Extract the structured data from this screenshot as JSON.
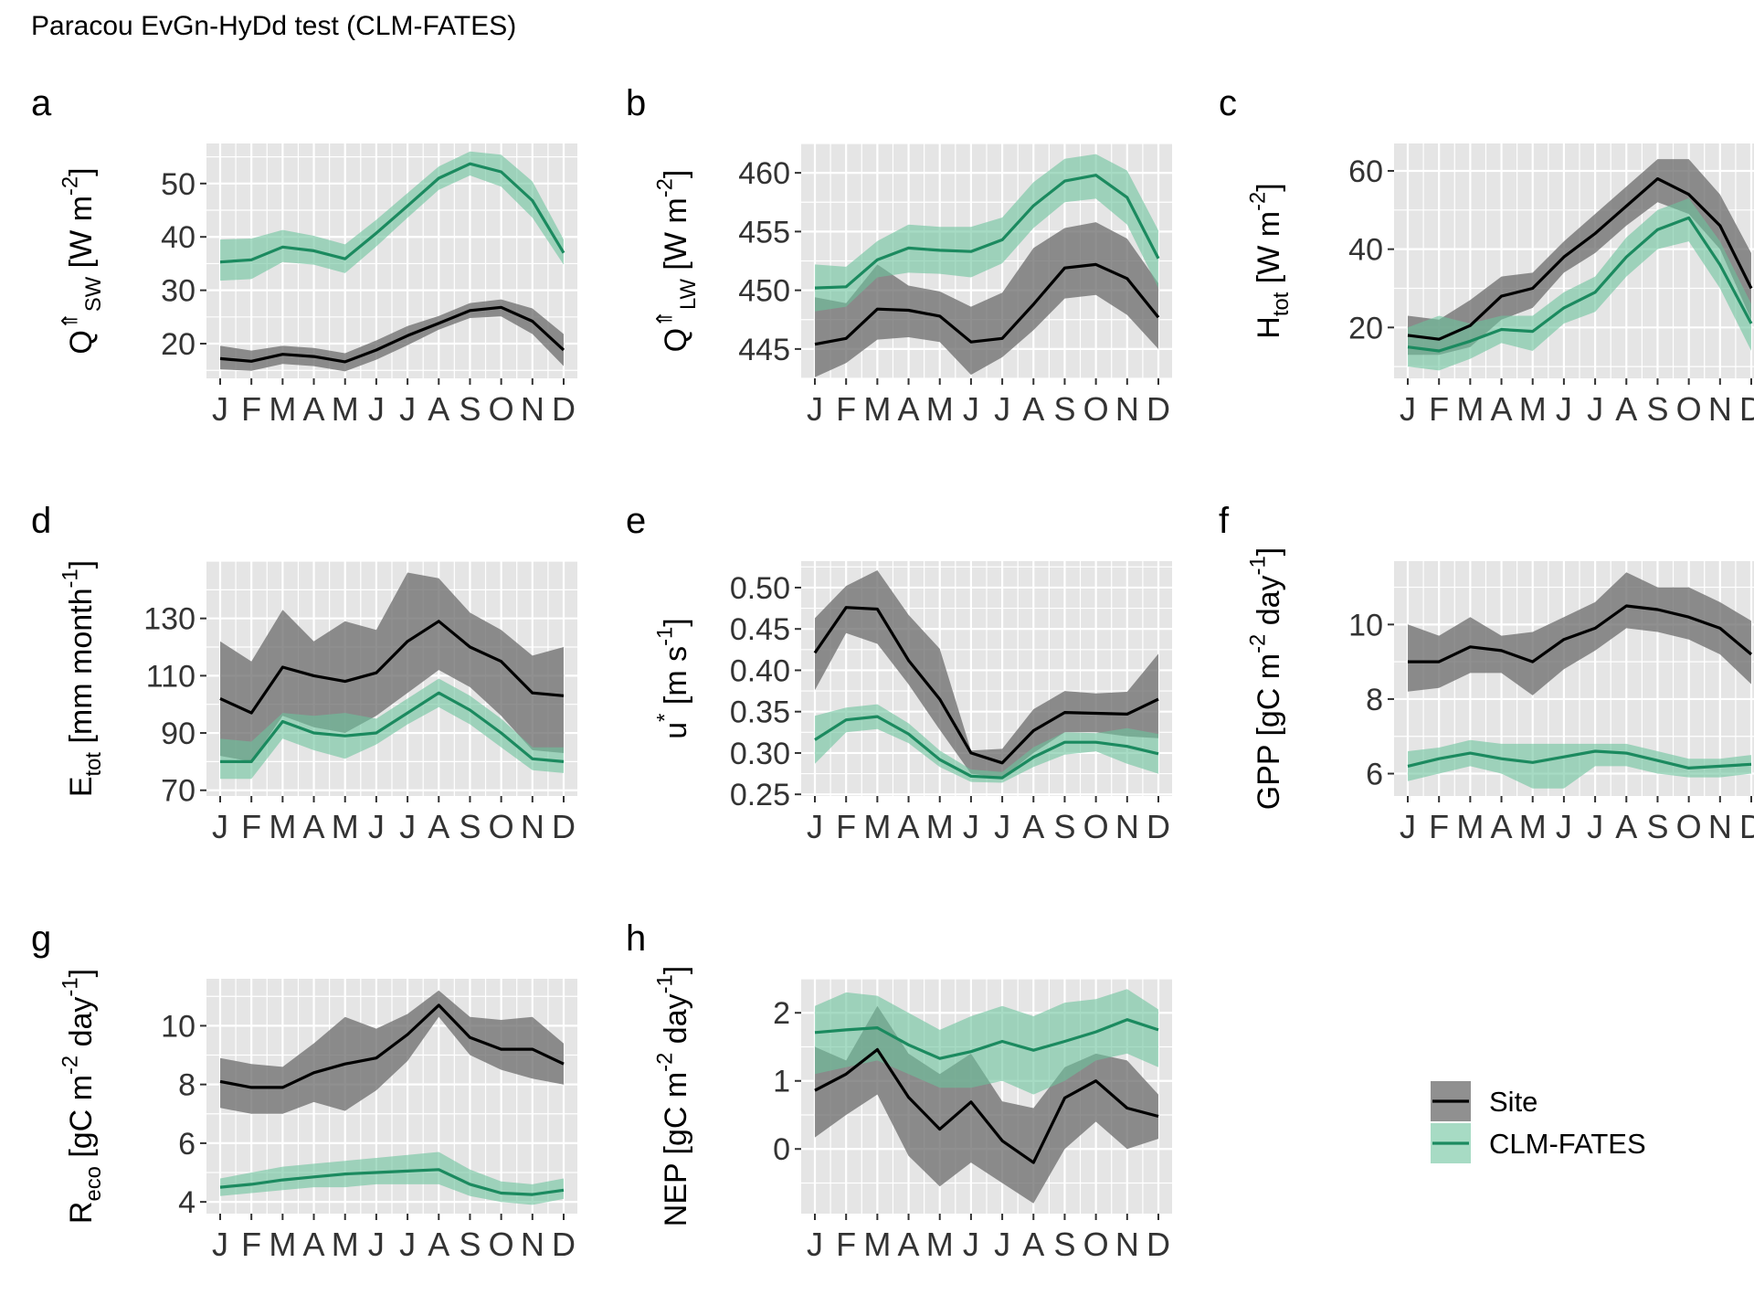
{
  "figure_title": "Paracou EvGn-HyDd test (CLM-FATES)",
  "colors": {
    "panel_bg": "#e5e5e5",
    "grid": "#ffffff",
    "site_line": "#000000",
    "site_band": "#6b6b6b",
    "model_line": "#1b8a5f",
    "model_band": "#6cc39c"
  },
  "legend": {
    "placement": "bottom-right",
    "items": [
      {
        "label": "Site",
        "key": "site"
      },
      {
        "label": "CLM-FATES",
        "key": "model"
      }
    ]
  },
  "chart_data": [
    {
      "panel": "a",
      "type": "line",
      "ylabel": "Q^⇑_SW [W m^-2]",
      "x": [
        "J",
        "F",
        "M",
        "A",
        "M",
        "J",
        "J",
        "A",
        "S",
        "O",
        "N",
        "D"
      ],
      "ylim": [
        13.5,
        57.5
      ],
      "yticks": [
        20,
        30,
        40,
        50
      ],
      "series": [
        {
          "name": "Site",
          "values": [
            17.2,
            16.7,
            18.0,
            17.6,
            16.6,
            18.8,
            21.5,
            23.8,
            26.2,
            26.8,
            24.2,
            18.8
          ],
          "lower": [
            15.2,
            14.9,
            16.2,
            15.8,
            14.8,
            17.0,
            19.7,
            22.6,
            24.8,
            25.1,
            21.8,
            15.8
          ],
          "upper": [
            19.6,
            18.7,
            19.6,
            19.2,
            18.2,
            20.6,
            23.3,
            25.2,
            27.6,
            28.3,
            26.6,
            21.8
          ]
        },
        {
          "name": "CLM-FATES",
          "values": [
            35.3,
            35.7,
            38.1,
            37.4,
            35.9,
            40.7,
            45.8,
            51.0,
            53.7,
            52.2,
            46.8,
            37.0
          ],
          "lower": [
            31.8,
            32.1,
            35.3,
            34.8,
            33.2,
            38.2,
            43.6,
            48.8,
            51.5,
            49.4,
            43.6,
            34.8
          ],
          "upper": [
            39.5,
            39.7,
            41.3,
            40.2,
            38.6,
            43.2,
            48.2,
            53.2,
            56.0,
            55.4,
            50.4,
            39.5
          ]
        }
      ]
    },
    {
      "panel": "b",
      "type": "line",
      "ylabel": "Q^⇑_LW [W m^-2]",
      "x": [
        "J",
        "F",
        "M",
        "A",
        "M",
        "J",
        "J",
        "A",
        "S",
        "O",
        "N",
        "D"
      ],
      "ylim": [
        442.5,
        462.5
      ],
      "yticks": [
        445,
        450,
        455,
        460
      ],
      "series": [
        {
          "name": "Site",
          "values": [
            445.4,
            445.9,
            448.4,
            448.3,
            447.8,
            445.6,
            445.9,
            448.8,
            451.9,
            452.2,
            451.0,
            447.7
          ],
          "lower": [
            442.6,
            443.8,
            445.8,
            446.0,
            445.6,
            442.8,
            444.3,
            446.6,
            449.3,
            449.6,
            447.9,
            445.0
          ],
          "upper": [
            449.4,
            448.9,
            452.2,
            450.4,
            449.9,
            448.6,
            449.8,
            453.6,
            455.3,
            455.8,
            454.4,
            450.6
          ]
        },
        {
          "name": "CLM-FATES",
          "values": [
            450.2,
            450.3,
            452.6,
            453.6,
            453.4,
            453.3,
            454.3,
            457.2,
            459.3,
            459.8,
            457.9,
            452.7
          ],
          "lower": [
            448.2,
            448.6,
            451.1,
            451.5,
            451.4,
            451.1,
            452.3,
            455.3,
            457.5,
            457.8,
            455.6,
            450.2
          ],
          "upper": [
            452.2,
            452.0,
            454.2,
            455.6,
            455.4,
            455.4,
            456.2,
            459.2,
            461.2,
            461.6,
            460.2,
            455.1
          ]
        }
      ]
    },
    {
      "panel": "c",
      "type": "line",
      "ylabel": "H_tot [W m^-2]",
      "x": [
        "J",
        "F",
        "M",
        "A",
        "M",
        "J",
        "J",
        "A",
        "S",
        "O",
        "N",
        "D"
      ],
      "ylim": [
        7,
        67
      ],
      "yticks": [
        20,
        40,
        60
      ],
      "series": [
        {
          "name": "Site",
          "values": [
            18,
            17,
            20.5,
            28,
            30,
            38,
            44,
            51,
            58,
            54,
            46,
            30
          ],
          "lower": [
            13,
            13,
            15,
            22,
            25,
            34,
            39,
            46,
            52,
            49,
            40,
            22
          ],
          "upper": [
            23,
            22,
            27,
            33,
            34,
            42,
            49,
            56,
            63,
            63,
            54,
            39
          ]
        },
        {
          "name": "CLM-FATES",
          "values": [
            15,
            14,
            16.5,
            19.5,
            19,
            25,
            29,
            38,
            45,
            48,
            36,
            21
          ],
          "lower": [
            10,
            9,
            12,
            16,
            14,
            21,
            24,
            33,
            40,
            42,
            30,
            14
          ],
          "upper": [
            20,
            23,
            21,
            23,
            23,
            29,
            33,
            43,
            50,
            53,
            42,
            26
          ]
        }
      ]
    },
    {
      "panel": "d",
      "type": "line",
      "ylabel": "E_tot [mm month^-1]",
      "x": [
        "J",
        "F",
        "M",
        "A",
        "M",
        "J",
        "J",
        "A",
        "S",
        "O",
        "N",
        "D"
      ],
      "ylim": [
        68,
        150
      ],
      "yticks": [
        70,
        90,
        110,
        130
      ],
      "series": [
        {
          "name": "Site",
          "values": [
            102,
            97,
            113,
            110,
            108,
            111,
            122,
            129,
            120,
            115,
            104,
            103
          ],
          "lower": [
            82,
            80,
            96,
            92,
            90,
            96,
            104,
            112,
            106,
            96,
            84,
            83
          ],
          "upper": [
            122,
            115,
            133,
            122,
            129,
            126,
            146,
            144,
            132,
            126,
            117,
            120
          ]
        },
        {
          "name": "CLM-FATES",
          "values": [
            80,
            80,
            94,
            90,
            89,
            90,
            97,
            104,
            98,
            90,
            81,
            80
          ],
          "lower": [
            74,
            74,
            88,
            84,
            81,
            86,
            93,
            99,
            93,
            85,
            77,
            76
          ],
          "upper": [
            88,
            87,
            97,
            96,
            97,
            95,
            102,
            109,
            103,
            95,
            85,
            85
          ]
        }
      ]
    },
    {
      "panel": "e",
      "type": "line",
      "ylabel": "u^* [m s^-1]",
      "x": [
        "J",
        "F",
        "M",
        "A",
        "M",
        "J",
        "J",
        "A",
        "S",
        "O",
        "N",
        "D"
      ],
      "ylim": [
        0.248,
        0.532
      ],
      "yticks": [
        0.25,
        0.3,
        0.35,
        0.4,
        0.45,
        0.5
      ],
      "ytick_labels": [
        "0.25",
        "0.30",
        "0.35",
        "0.40",
        "0.45",
        "0.50"
      ],
      "series": [
        {
          "name": "Site",
          "values": [
            0.421,
            0.476,
            0.474,
            0.412,
            0.365,
            0.3,
            0.288,
            0.327,
            0.349,
            0.348,
            0.347,
            0.365
          ],
          "lower": [
            0.376,
            0.445,
            0.432,
            0.383,
            0.328,
            0.275,
            0.27,
            0.3,
            0.325,
            0.325,
            0.32,
            0.318
          ],
          "upper": [
            0.463,
            0.502,
            0.521,
            0.467,
            0.426,
            0.303,
            0.305,
            0.353,
            0.375,
            0.372,
            0.374,
            0.42
          ]
        },
        {
          "name": "CLM-FATES",
          "values": [
            0.316,
            0.34,
            0.344,
            0.323,
            0.292,
            0.272,
            0.27,
            0.295,
            0.313,
            0.313,
            0.308,
            0.299
          ],
          "lower": [
            0.287,
            0.325,
            0.329,
            0.312,
            0.283,
            0.265,
            0.264,
            0.283,
            0.298,
            0.302,
            0.287,
            0.275
          ],
          "upper": [
            0.345,
            0.355,
            0.359,
            0.336,
            0.303,
            0.28,
            0.277,
            0.307,
            0.325,
            0.324,
            0.33,
            0.323
          ]
        }
      ]
    },
    {
      "panel": "f",
      "type": "line",
      "ylabel": "GPP [gC m^-2 day^-1]",
      "x": [
        "J",
        "F",
        "M",
        "A",
        "M",
        "J",
        "J",
        "A",
        "S",
        "O",
        "N",
        "D"
      ],
      "ylim": [
        5.4,
        11.7
      ],
      "yticks": [
        6,
        8,
        10
      ],
      "series": [
        {
          "name": "Site",
          "values": [
            9.0,
            9.0,
            9.4,
            9.3,
            9.0,
            9.6,
            9.9,
            10.5,
            10.4,
            10.2,
            9.9,
            9.2
          ],
          "lower": [
            8.2,
            8.3,
            8.7,
            8.7,
            8.1,
            8.8,
            9.3,
            9.9,
            9.8,
            9.6,
            9.2,
            8.4
          ],
          "upper": [
            10.0,
            9.7,
            10.2,
            9.7,
            9.8,
            10.2,
            10.6,
            11.4,
            11.0,
            11.0,
            10.6,
            10.1
          ]
        },
        {
          "name": "CLM-FATES",
          "values": [
            6.2,
            6.4,
            6.55,
            6.4,
            6.3,
            6.45,
            6.6,
            6.55,
            6.35,
            6.15,
            6.2,
            6.25
          ],
          "lower": [
            5.8,
            6.0,
            6.2,
            6.0,
            5.6,
            5.6,
            6.2,
            6.2,
            6.0,
            5.9,
            5.9,
            6.0
          ],
          "upper": [
            6.6,
            6.7,
            6.9,
            6.8,
            6.8,
            6.8,
            6.8,
            6.8,
            6.6,
            6.4,
            6.4,
            6.5
          ]
        }
      ]
    },
    {
      "panel": "g",
      "type": "line",
      "ylabel": "R_eco [gC m^-2 day^-1]",
      "x": [
        "J",
        "F",
        "M",
        "A",
        "M",
        "J",
        "J",
        "A",
        "S",
        "O",
        "N",
        "D"
      ],
      "ylim": [
        3.6,
        11.6
      ],
      "yticks": [
        4,
        6,
        8,
        10
      ],
      "series": [
        {
          "name": "Site",
          "values": [
            8.1,
            7.9,
            7.9,
            8.4,
            8.7,
            8.9,
            9.7,
            10.7,
            9.6,
            9.2,
            9.2,
            8.7
          ],
          "lower": [
            7.2,
            7.0,
            7.0,
            7.4,
            7.1,
            7.8,
            8.8,
            10.3,
            9.0,
            8.5,
            8.2,
            8.0
          ],
          "upper": [
            8.9,
            8.7,
            8.6,
            9.4,
            10.3,
            9.9,
            10.4,
            11.2,
            10.3,
            10.2,
            10.3,
            9.4
          ]
        },
        {
          "name": "CLM-FATES",
          "values": [
            4.5,
            4.6,
            4.75,
            4.85,
            4.95,
            5.0,
            5.05,
            5.1,
            4.6,
            4.3,
            4.25,
            4.4
          ],
          "lower": [
            4.2,
            4.3,
            4.4,
            4.5,
            4.5,
            4.6,
            4.6,
            4.6,
            4.2,
            4.0,
            3.9,
            4.1
          ],
          "upper": [
            4.8,
            5.0,
            5.2,
            5.3,
            5.4,
            5.5,
            5.6,
            5.7,
            5.1,
            4.7,
            4.6,
            4.8
          ]
        }
      ]
    },
    {
      "panel": "h",
      "type": "line",
      "ylabel": "NEP [gC m^-2 day^-1]",
      "x": [
        "J",
        "F",
        "M",
        "A",
        "M",
        "J",
        "J",
        "A",
        "S",
        "O",
        "N",
        "D"
      ],
      "ylim": [
        -0.95,
        2.5
      ],
      "yticks": [
        0,
        1,
        2
      ],
      "series": [
        {
          "name": "Site",
          "values": [
            0.86,
            1.1,
            1.46,
            0.76,
            0.29,
            0.69,
            0.12,
            -0.2,
            0.75,
            1.0,
            0.6,
            0.48
          ],
          "lower": [
            0.17,
            0.5,
            0.8,
            -0.1,
            -0.55,
            -0.2,
            -0.5,
            -0.8,
            0.0,
            0.4,
            0.0,
            0.15
          ],
          "upper": [
            1.5,
            1.3,
            2.1,
            1.4,
            1.1,
            1.4,
            0.7,
            0.6,
            1.2,
            1.4,
            1.3,
            0.8
          ]
        },
        {
          "name": "CLM-FATES",
          "values": [
            1.71,
            1.75,
            1.78,
            1.53,
            1.33,
            1.43,
            1.58,
            1.45,
            1.58,
            1.72,
            1.9,
            1.75
          ],
          "lower": [
            1.1,
            1.2,
            1.3,
            1.1,
            0.9,
            0.9,
            1.0,
            0.8,
            1.0,
            1.3,
            1.4,
            1.2
          ],
          "upper": [
            2.1,
            2.3,
            2.25,
            2.0,
            1.75,
            1.95,
            2.1,
            1.95,
            2.15,
            2.2,
            2.35,
            2.05
          ]
        }
      ]
    }
  ]
}
